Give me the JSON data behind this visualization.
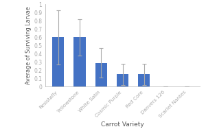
{
  "categories": [
    "Resistafly",
    "Yellowstone",
    "White Satin",
    "Cosmic Purple",
    "Red Core",
    "Danvers 126",
    "Scarlet Nantes"
  ],
  "values": [
    0.6,
    0.6,
    0.29,
    0.15,
    0.15,
    0.0,
    0.0
  ],
  "errors": [
    0.33,
    0.22,
    0.18,
    0.13,
    0.13,
    0.0,
    0.0
  ],
  "bar_color": "#4472C4",
  "ylabel": "Average of Surviving Larvae",
  "xlabel": "Carrot Variety",
  "ylim": [
    0,
    1
  ],
  "yticks": [
    0,
    0.1,
    0.2,
    0.3,
    0.4,
    0.5,
    0.6,
    0.7,
    0.8,
    0.9,
    1
  ],
  "background_color": "#ffffff",
  "bar_width": 0.55,
  "tick_color": "#aaaaaa",
  "spine_color": "#bbbbbb",
  "error_color": "#aaaaaa",
  "label_color": "#555555"
}
